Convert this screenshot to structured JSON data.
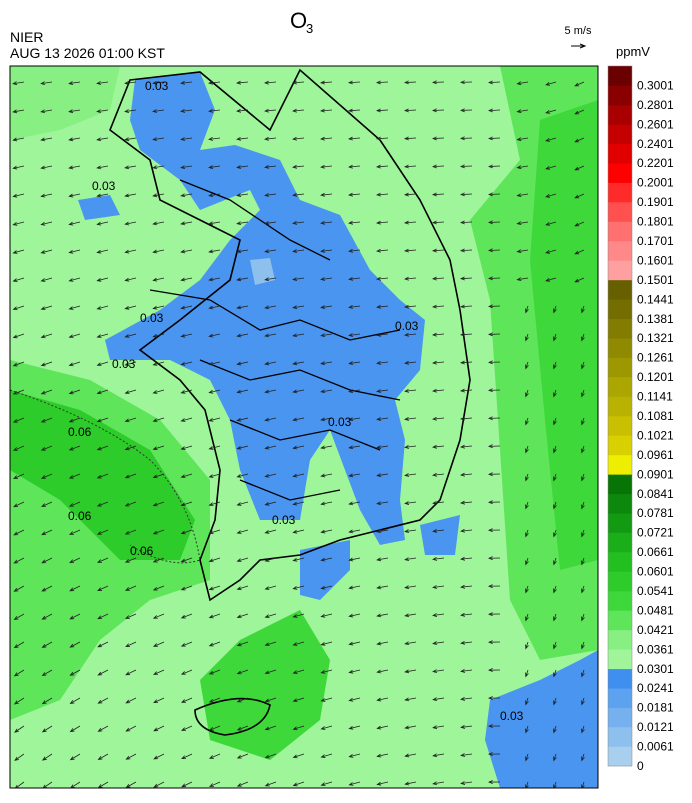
{
  "header": {
    "title": "O",
    "title_sub": "3",
    "agency": "NIER",
    "datetime": "AUG 13 2026 01:00 KST",
    "wind_scale": "5 m/s"
  },
  "colorbar": {
    "unit": "ppmV",
    "labels": [
      "0",
      "0.0061",
      "0.0121",
      "0.0181",
      "0.0241",
      "0.0301",
      "0.0361",
      "0.0421",
      "0.0481",
      "0.0541",
      "0.0601",
      "0.0661",
      "0.0721",
      "0.0781",
      "0.0841",
      "0.0901",
      "0.0961",
      "0.1021",
      "0.1081",
      "0.1141",
      "0.1201",
      "0.1261",
      "0.1321",
      "0.1381",
      "0.1441",
      "0.1501",
      "0.1601",
      "0.1701",
      "0.1801",
      "0.1901",
      "0.2001",
      "0.2201",
      "0.2401",
      "0.2601",
      "0.2801",
      "0.3001"
    ],
    "colors": [
      "#a8cfee",
      "#8ec0ee",
      "#74b1ee",
      "#5ca2ef",
      "#3f8ff0",
      "#a0f59a",
      "#88f082",
      "#5ee55a",
      "#3ed83a",
      "#2ecc2a",
      "#22bf20",
      "#1aae18",
      "#129a12",
      "#0c880c",
      "#067506",
      "#eeee00",
      "#d8d000",
      "#c8c000",
      "#bab200",
      "#aca600",
      "#9e9800",
      "#908a00",
      "#827c00",
      "#746e00",
      "#666000",
      "#ffa0a0",
      "#ff8888",
      "#ff7070",
      "#ff5050",
      "#ff2a2a",
      "#ff0000",
      "#e00000",
      "#c40000",
      "#a80000",
      "#8a0000",
      "#6a0000"
    ]
  },
  "map": {
    "contour_labels": [
      "0.03",
      "0.06"
    ]
  }
}
